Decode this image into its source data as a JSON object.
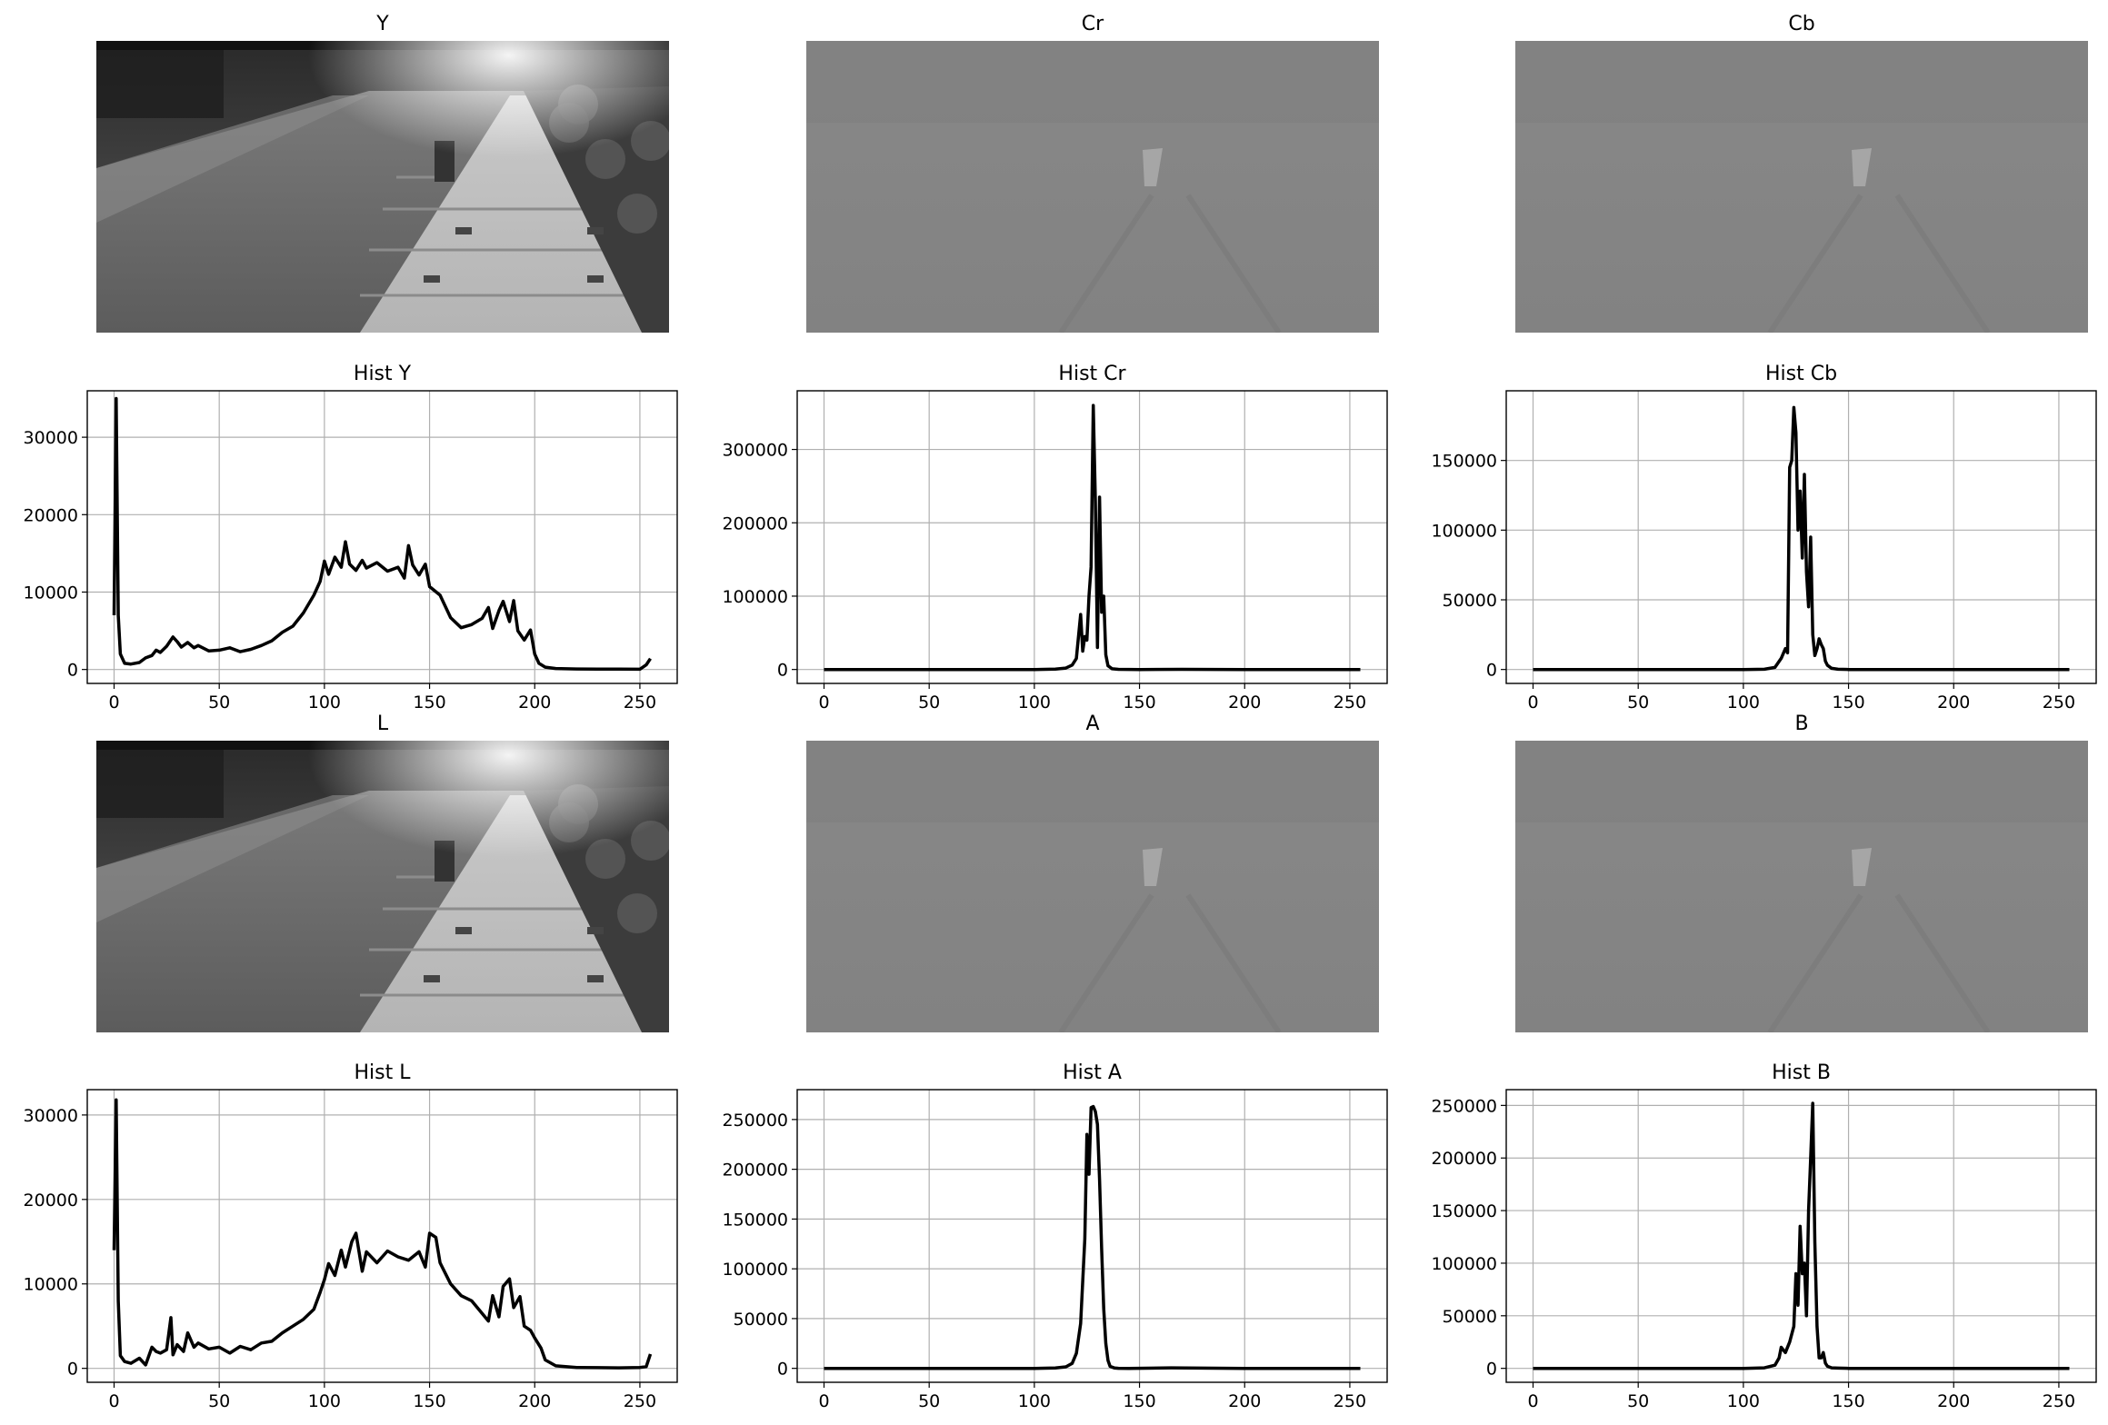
{
  "figure": {
    "images": [
      {
        "title": "Y",
        "scene": "bright"
      },
      {
        "title": "Cr",
        "scene": "chroma"
      },
      {
        "title": "Cb",
        "scene": "chroma"
      },
      {
        "title": "L",
        "scene": "bright"
      },
      {
        "title": "A",
        "scene": "chroma"
      },
      {
        "title": "B",
        "scene": "chroma"
      }
    ]
  },
  "chart_data": [
    {
      "type": "line",
      "title": "Hist Y",
      "xlabel": "",
      "ylabel": "",
      "xlim": [
        0,
        255
      ],
      "ylim": [
        0,
        36000
      ],
      "grid": true,
      "xticks": [
        0,
        50,
        100,
        150,
        200,
        250
      ],
      "yticks": [
        0,
        10000,
        20000,
        30000
      ],
      "x": [
        0,
        1,
        2,
        3,
        5,
        8,
        12,
        15,
        18,
        20,
        22,
        25,
        28,
        30,
        32,
        35,
        38,
        40,
        45,
        50,
        55,
        60,
        65,
        70,
        75,
        80,
        85,
        90,
        95,
        98,
        100,
        102,
        105,
        108,
        110,
        112,
        115,
        118,
        120,
        125,
        130,
        135,
        138,
        140,
        142,
        145,
        148,
        150,
        155,
        160,
        165,
        170,
        175,
        178,
        180,
        183,
        185,
        188,
        190,
        192,
        195,
        198,
        200,
        202,
        205,
        210,
        220,
        230,
        240,
        250,
        253,
        255
      ],
      "series": [
        {
          "values": [
            7000,
            35000,
            7000,
            2000,
            800,
            700,
            900,
            1500,
            1800,
            2500,
            2200,
            3000,
            4200,
            3600,
            2900,
            3500,
            2800,
            3100,
            2400,
            2500,
            2800,
            2300,
            2600,
            3100,
            3700,
            4800,
            5600,
            7300,
            9600,
            11400,
            14000,
            12300,
            14500,
            13200,
            16500,
            13600,
            12800,
            14100,
            13100,
            13800,
            12700,
            13200,
            11800,
            16000,
            13500,
            12200,
            13600,
            10700,
            9600,
            6700,
            5400,
            5800,
            6600,
            8000,
            5300,
            7600,
            8800,
            6200,
            8900,
            5000,
            3800,
            5100,
            2000,
            800,
            300,
            120,
            70,
            60,
            40,
            30,
            600,
            1400
          ]
        }
      ]
    },
    {
      "type": "line",
      "title": "Hist Cr",
      "xlabel": "",
      "ylabel": "",
      "xlim": [
        0,
        255
      ],
      "ylim": [
        0,
        380000
      ],
      "grid": true,
      "xticks": [
        0,
        50,
        100,
        150,
        200,
        250
      ],
      "yticks": [
        0,
        100000,
        200000,
        300000
      ],
      "x": [
        0,
        50,
        100,
        110,
        115,
        118,
        120,
        122,
        123,
        124,
        125,
        126,
        127,
        128,
        129,
        130,
        131,
        132,
        133,
        134,
        135,
        137,
        140,
        150,
        170,
        200,
        255
      ],
      "series": [
        {
          "values": [
            0,
            0,
            0,
            500,
            2000,
            6000,
            15000,
            75000,
            25000,
            45000,
            40000,
            100000,
            140000,
            360000,
            230000,
            30000,
            235000,
            78000,
            100000,
            20000,
            5000,
            1000,
            200,
            0,
            200,
            0,
            0
          ]
        }
      ]
    },
    {
      "type": "line",
      "title": "Hist Cb",
      "xlabel": "",
      "ylabel": "",
      "xlim": [
        0,
        255
      ],
      "ylim": [
        0,
        200000
      ],
      "grid": true,
      "xticks": [
        0,
        50,
        100,
        150,
        200,
        250
      ],
      "yticks": [
        0,
        50000,
        100000,
        150000
      ],
      "x": [
        0,
        50,
        100,
        110,
        115,
        118,
        120,
        121,
        122,
        123,
        124,
        125,
        126,
        127,
        128,
        129,
        130,
        131,
        132,
        133,
        134,
        135,
        136,
        137,
        138,
        139,
        140,
        142,
        145,
        150,
        200,
        255
      ],
      "series": [
        {
          "values": [
            0,
            0,
            0,
            200,
            1500,
            8000,
            15000,
            12000,
            145000,
            150000,
            188000,
            170000,
            100000,
            128000,
            80000,
            140000,
            70000,
            45000,
            95000,
            25000,
            10000,
            15000,
            22000,
            18000,
            15000,
            6000,
            3000,
            800,
            200,
            0,
            0,
            0
          ]
        }
      ]
    },
    {
      "type": "line",
      "title": "Hist L",
      "xlabel": "",
      "ylabel": "",
      "xlim": [
        0,
        255
      ],
      "ylim": [
        0,
        33000
      ],
      "grid": true,
      "xticks": [
        0,
        50,
        100,
        150,
        200,
        250
      ],
      "yticks": [
        0,
        10000,
        20000,
        30000
      ],
      "x": [
        0,
        1,
        2,
        3,
        5,
        8,
        12,
        15,
        18,
        20,
        22,
        25,
        27,
        28,
        30,
        33,
        35,
        38,
        40,
        45,
        50,
        55,
        60,
        65,
        70,
        75,
        80,
        85,
        90,
        95,
        98,
        100,
        102,
        105,
        108,
        110,
        113,
        115,
        118,
        120,
        125,
        130,
        135,
        140,
        145,
        148,
        150,
        153,
        155,
        160,
        165,
        170,
        175,
        178,
        180,
        183,
        185,
        188,
        190,
        193,
        195,
        198,
        200,
        203,
        205,
        210,
        220,
        230,
        240,
        250,
        253,
        255
      ],
      "series": [
        {
          "values": [
            14000,
            31800,
            8000,
            1500,
            800,
            600,
            1200,
            400,
            2500,
            2000,
            1800,
            2200,
            6000,
            1600,
            2800,
            2000,
            4200,
            2500,
            3000,
            2300,
            2500,
            1800,
            2600,
            2200,
            3000,
            3200,
            4200,
            5000,
            5800,
            7000,
            9000,
            10500,
            12400,
            11000,
            14000,
            12000,
            15000,
            16000,
            11500,
            13800,
            12500,
            13900,
            13200,
            12800,
            13800,
            12000,
            16000,
            15500,
            12500,
            10000,
            8600,
            8000,
            6500,
            5600,
            8600,
            6100,
            9700,
            10600,
            7200,
            8500,
            5000,
            4500,
            3600,
            2400,
            1000,
            300,
            100,
            80,
            60,
            100,
            200,
            1700
          ]
        }
      ]
    },
    {
      "type": "line",
      "title": "Hist A",
      "xlabel": "",
      "ylabel": "",
      "xlim": [
        0,
        255
      ],
      "ylim": [
        0,
        280000
      ],
      "grid": true,
      "xticks": [
        0,
        50,
        100,
        150,
        200,
        250
      ],
      "yticks": [
        0,
        50000,
        100000,
        150000,
        200000,
        250000
      ],
      "x": [
        0,
        50,
        100,
        110,
        115,
        118,
        120,
        122,
        124,
        125,
        126,
        127,
        128,
        129,
        130,
        131,
        132,
        133,
        134,
        135,
        136,
        138,
        140,
        145,
        165,
        200,
        255
      ],
      "series": [
        {
          "values": [
            0,
            0,
            0,
            300,
            1500,
            5000,
            15000,
            45000,
            130000,
            235000,
            195000,
            262000,
            263000,
            258000,
            245000,
            190000,
            120000,
            60000,
            25000,
            8000,
            2000,
            400,
            100,
            0,
            500,
            0,
            0
          ]
        }
      ]
    },
    {
      "type": "line",
      "title": "Hist B",
      "xlabel": "",
      "ylabel": "",
      "xlim": [
        0,
        255
      ],
      "ylim": [
        0,
        265000
      ],
      "grid": true,
      "xticks": [
        0,
        50,
        100,
        150,
        200,
        250
      ],
      "yticks": [
        0,
        50000,
        100000,
        150000,
        200000,
        250000
      ],
      "x": [
        0,
        50,
        100,
        110,
        115,
        117,
        118,
        120,
        122,
        124,
        125,
        126,
        127,
        128,
        129,
        130,
        131,
        132,
        133,
        134,
        135,
        136,
        137,
        138,
        139,
        140,
        142,
        145,
        150,
        200,
        255
      ],
      "series": [
        {
          "values": [
            0,
            0,
            0,
            500,
            3000,
            10000,
            20000,
            15000,
            25000,
            40000,
            90000,
            60000,
            135000,
            90000,
            100000,
            50000,
            150000,
            200000,
            252000,
            120000,
            40000,
            10000,
            10000,
            15000,
            5000,
            2000,
            500,
            200,
            0,
            0,
            0
          ]
        }
      ]
    }
  ]
}
